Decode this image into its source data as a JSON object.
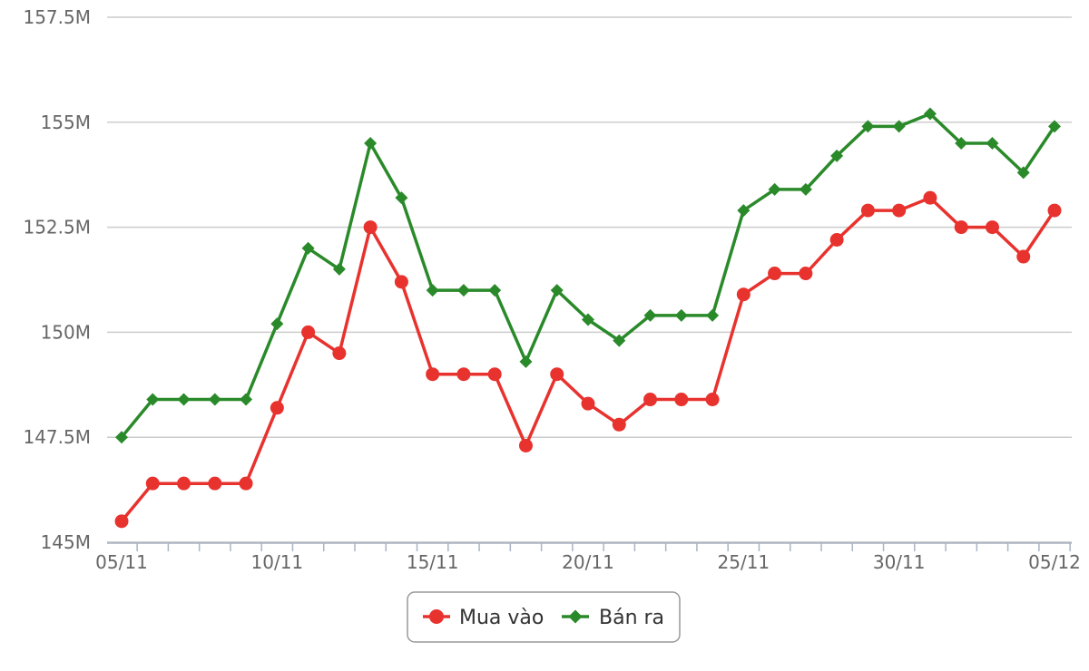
{
  "chart_data": {
    "type": "line",
    "title": "",
    "xlabel": "",
    "ylabel": "",
    "ylim": [
      145,
      157.5
    ],
    "yticks": [
      "145M",
      "147.5M",
      "150M",
      "152.5M",
      "155M",
      "157.5M"
    ],
    "x": [
      "05/11",
      "06/11",
      "07/11",
      "08/11",
      "09/11",
      "10/11",
      "11/11",
      "12/11",
      "13/11",
      "14/11",
      "15/11",
      "16/11",
      "17/11",
      "18/11",
      "19/11",
      "20/11",
      "21/11",
      "22/11",
      "23/11",
      "24/11",
      "25/11",
      "26/11",
      "27/11",
      "28/11",
      "29/11",
      "30/11",
      "01/12",
      "02/12",
      "03/12",
      "04/12",
      "05/12"
    ],
    "xtick_labels": [
      "05/11",
      "10/11",
      "15/11",
      "20/11",
      "25/11",
      "30/11",
      "05/12"
    ],
    "legend_position": "bottom-center",
    "series": [
      {
        "name": "Mua vào",
        "color": "#e8322e",
        "marker": "circle",
        "values": [
          145.5,
          146.4,
          146.4,
          146.4,
          146.4,
          148.2,
          150.0,
          149.5,
          152.5,
          151.2,
          149.0,
          149.0,
          149.0,
          147.3,
          149.0,
          148.3,
          147.8,
          148.4,
          148.4,
          148.4,
          150.9,
          151.4,
          151.4,
          152.2,
          152.9,
          152.9,
          153.2,
          152.5,
          152.5,
          151.8,
          152.9
        ]
      },
      {
        "name": "Bán ra",
        "color": "#2a8a2a",
        "marker": "diamond",
        "values": [
          147.5,
          148.4,
          148.4,
          148.4,
          148.4,
          150.2,
          152.0,
          151.5,
          154.5,
          153.2,
          151.0,
          151.0,
          151.0,
          149.3,
          151.0,
          150.3,
          149.8,
          150.4,
          150.4,
          150.4,
          152.9,
          153.4,
          153.4,
          154.2,
          154.9,
          154.9,
          155.2,
          154.5,
          154.5,
          153.8,
          154.9
        ]
      }
    ]
  }
}
